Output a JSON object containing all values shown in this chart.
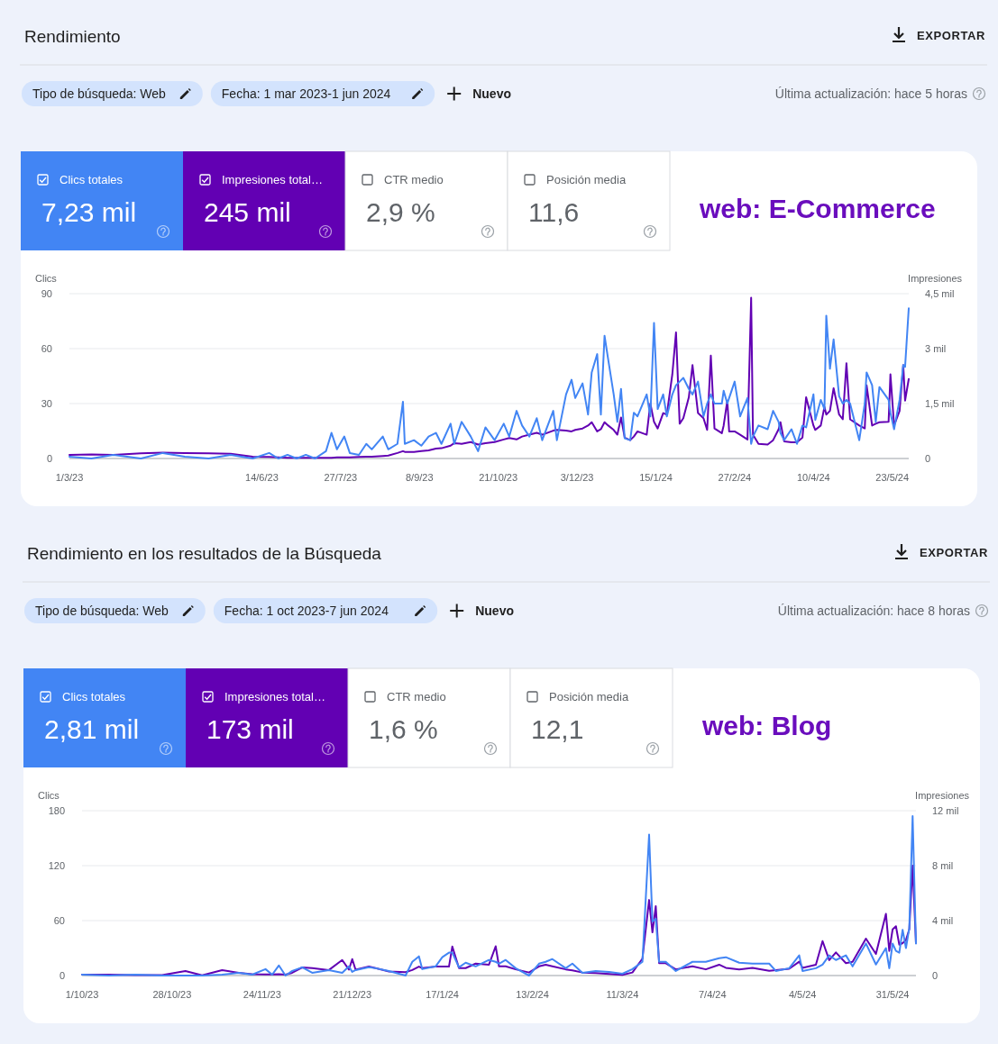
{
  "chart_data": [
    {
      "type": "line",
      "title": "Rendimiento",
      "subtitle": "web: E-Commerce",
      "ylabel": "Clics",
      "y2label": "Impresiones",
      "annotations": [
        "EXPORTAR",
        "Tipo de búsqueda: Web",
        "Fecha: 1 mar 2023-1 jun 2024",
        "Nuevo",
        "Última actualización: hace 5 horas",
        "7,23 mil",
        "245 mil",
        "CTR medio",
        "2,9 %",
        "Posición media",
        "11,6"
      ],
      "x": [
        "2023-03-01",
        "2023-03-13",
        "2023-03-25",
        "2023-04-09",
        "2023-04-21",
        "2023-05-03",
        "2023-05-16",
        "2023-05-28",
        "2023-06-09",
        "2023-06-18",
        "2023-06-23",
        "2023-06-28",
        "2023-07-03",
        "2023-07-08",
        "2023-07-13",
        "2023-07-19",
        "2023-07-22",
        "2023-07-25",
        "2023-07-29",
        "2023-08-01",
        "2023-08-06",
        "2023-08-10",
        "2023-08-13",
        "2023-08-19",
        "2023-08-22",
        "2023-08-27",
        "2023-08-30",
        "2023-08-31",
        "2023-09-05",
        "2023-09-09",
        "2023-09-13",
        "2023-09-17",
        "2023-09-20",
        "2023-09-25",
        "2023-09-27",
        "2023-10-01",
        "2023-10-06",
        "2023-10-10",
        "2023-10-14",
        "2023-10-19",
        "2023-10-24",
        "2023-10-27",
        "2023-10-31",
        "2023-11-03",
        "2023-11-07",
        "2023-11-11",
        "2023-11-14",
        "2023-11-20",
        "2023-11-22",
        "2023-11-27",
        "2023-11-30",
        "2023-12-02",
        "2023-12-06",
        "2023-12-09",
        "2023-12-11",
        "2023-12-14",
        "2023-12-16",
        "2023-12-18",
        "2023-12-20",
        "2023-12-23",
        "2023-12-25",
        "2023-12-27",
        "2023-12-29",
        "2024-01-01",
        "2024-01-03",
        "2024-01-05",
        "2024-01-10",
        "2024-01-12",
        "2024-01-14",
        "2024-01-16",
        "2024-01-19",
        "2024-01-21",
        "2024-01-24",
        "2024-01-26",
        "2024-01-28",
        "2024-01-30",
        "2024-02-02",
        "2024-02-04",
        "2024-02-07",
        "2024-02-10",
        "2024-02-12",
        "2024-02-14",
        "2024-02-16",
        "2024-02-20",
        "2024-02-21",
        "2024-02-23",
        "2024-02-24",
        "2024-02-27",
        "2024-03-01",
        "2024-03-05",
        "2024-03-07",
        "2024-03-08",
        "2024-03-11",
        "2024-03-16",
        "2024-03-19",
        "2024-03-22",
        "2024-03-23",
        "2024-03-25",
        "2024-03-29",
        "2024-04-01",
        "2024-04-04",
        "2024-04-06",
        "2024-04-10",
        "2024-04-11",
        "2024-04-14",
        "2024-04-16",
        "2024-04-17",
        "2024-04-19",
        "2024-04-21",
        "2024-04-24",
        "2024-04-26",
        "2024-04-28",
        "2024-04-30",
        "2024-05-05",
        "2024-05-08",
        "2024-05-09",
        "2024-05-12",
        "2024-05-14",
        "2024-05-16",
        "2024-05-21",
        "2024-05-22",
        "2024-05-24",
        "2024-05-27",
        "2024-05-29",
        "2024-05-30",
        "2024-06-01"
      ],
      "xlim": [
        "2023-03-01",
        "2024-06-01"
      ],
      "xticks": [
        {
          "value": "2023-03-01",
          "label": "1/3/23"
        },
        {
          "value": "2023-06-14",
          "label": "14/6/23"
        },
        {
          "value": "2023-07-27",
          "label": "27/7/23"
        },
        {
          "value": "2023-09-08",
          "label": "8/9/23"
        },
        {
          "value": "2023-10-21",
          "label": "21/10/23"
        },
        {
          "value": "2023-12-03",
          "label": "3/12/23"
        },
        {
          "value": "2024-01-15",
          "label": "15/1/24"
        },
        {
          "value": "2024-02-27",
          "label": "27/2/24"
        },
        {
          "value": "2024-04-10",
          "label": "10/4/24"
        },
        {
          "value": "2024-05-23",
          "label": "23/5/24"
        }
      ],
      "ylim": [
        0,
        90
      ],
      "yticks": [
        0,
        30,
        60,
        90
      ],
      "y2lim": [
        0,
        4.5
      ],
      "y2ticks": [
        0,
        {
          "value": 1.5,
          "label": "1,5 mil"
        },
        {
          "value": 3,
          "label": "3 mil"
        },
        {
          "value": 4.5,
          "label": "4,5 mil"
        }
      ],
      "grid": "y",
      "legend": "top left",
      "series": [
        {
          "name": "Clics totales",
          "color": "#4285f4",
          "values": [
            1,
            0,
            2,
            0,
            3,
            1,
            0,
            2,
            0,
            3,
            0,
            2,
            0,
            2,
            0,
            4,
            14,
            5,
            12,
            3,
            2,
            8,
            5,
            12,
            5,
            8,
            31,
            8,
            10,
            7,
            12,
            14,
            8,
            19,
            8,
            20,
            12,
            4,
            17,
            10,
            19,
            12,
            26,
            18,
            12,
            22,
            10,
            26,
            10,
            35,
            43,
            33,
            41,
            24,
            47,
            57,
            24,
            67,
            54,
            35,
            20,
            38,
            11,
            10,
            25,
            23,
            35,
            23,
            74,
            27,
            35,
            23,
            35,
            40,
            42,
            44,
            38,
            35,
            42,
            23,
            30,
            35,
            30,
            30,
            37,
            30,
            33,
            42,
            23,
            33,
            8,
            12,
            18,
            16,
            26,
            20,
            14,
            10,
            16,
            8,
            18,
            17,
            35,
            21,
            32,
            27,
            78,
            49,
            65,
            34,
            30,
            32,
            30,
            10,
            30,
            47,
            40,
            20,
            39,
            32,
            25,
            16,
            32,
            51,
            50,
            82
          ]
        },
        {
          "name": "Impresiones total…",
          "color": "#6200b3",
          "axis": "y2",
          "values": [
            0.1,
            0.11,
            0.1,
            0.14,
            0.16,
            0.15,
            0.14,
            0.13,
            0.05,
            0.04,
            0.03,
            0.02,
            0.02,
            0.02,
            0.02,
            0.02,
            0.02,
            0.03,
            0.03,
            0.03,
            0.04,
            0.05,
            0.05,
            0.07,
            0.08,
            0.15,
            0.2,
            0.18,
            0.18,
            0.2,
            0.22,
            0.27,
            0.28,
            0.35,
            0.42,
            0.4,
            0.45,
            0.38,
            0.42,
            0.45,
            0.52,
            0.56,
            0.52,
            0.6,
            0.65,
            0.7,
            0.65,
            0.76,
            0.78,
            0.76,
            0.74,
            0.78,
            0.82,
            0.9,
            0.99,
            0.74,
            0.8,
            0.99,
            0.9,
            0.78,
            0.65,
            1.12,
            0.57,
            0.5,
            0.6,
            0.74,
            0.65,
            1.5,
            1,
            0.82,
            1.24,
            1.2,
            2.3,
            3.44,
            0.95,
            1.1,
            1.67,
            2.55,
            1.24,
            1.1,
            0.78,
            2.81,
            0.82,
            0.69,
            0.9,
            1.58,
            0.74,
            0.74,
            0.65,
            0.52,
            4.39,
            0.65,
            0.4,
            0.38,
            0.5,
            0.8,
            0.99,
            0.47,
            0.44,
            0.44,
            0.57,
            1.67,
            0.9,
            0.78,
            0.9,
            1.41,
            1.2,
            1.3,
            1.92,
            1.2,
            1.07,
            2.6,
            1.07,
            0.9,
            0.82,
            2,
            0.9,
            0.95,
            0.99,
            1,
            2.3,
            0.9,
            1.3,
            2.55,
            1.58,
            2.17
          ]
        }
      ]
    },
    {
      "type": "line",
      "title": "Rendimiento en los resultados de la Búsqueda",
      "subtitle": "web: Blog",
      "ylabel": "Clics",
      "y2label": "Impresiones",
      "annotations": [
        "EXPORTAR",
        "Tipo de búsqueda: Web",
        "Fecha: 1 oct 2023-7 jun 2024",
        "Nuevo",
        "Última actualización: hace 8 horas",
        "2,81 mil",
        "173 mil",
        "CTR medio",
        "1,6 %",
        "Posición media",
        "12,1"
      ],
      "x": [
        "2023-10-01",
        "2023-10-09",
        "2023-10-17",
        "2023-10-25",
        "2023-11-01",
        "2023-11-06",
        "2023-11-12",
        "2023-11-17",
        "2023-11-21",
        "2023-11-25",
        "2023-11-27",
        "2023-11-29",
        "2023-12-01",
        "2023-12-03",
        "2023-12-06",
        "2023-12-09",
        "2023-12-14",
        "2023-12-18",
        "2023-12-20",
        "2023-12-21",
        "2023-12-22",
        "2023-12-26",
        "2023-12-28",
        "2024-01-01",
        "2024-01-06",
        "2024-01-08",
        "2024-01-10",
        "2024-01-11",
        "2024-01-15",
        "2024-01-17",
        "2024-01-19",
        "2024-01-20",
        "2024-01-22",
        "2024-01-24",
        "2024-01-27",
        "2024-01-31",
        "2024-02-02",
        "2024-02-03",
        "2024-02-05",
        "2024-02-08",
        "2024-02-12",
        "2024-02-15",
        "2024-02-17",
        "2024-02-19",
        "2024-02-23",
        "2024-02-25",
        "2024-02-28",
        "2024-03-03",
        "2024-03-07",
        "2024-03-11",
        "2024-03-14",
        "2024-03-17",
        "2024-03-19",
        "2024-03-20",
        "2024-03-21",
        "2024-03-22",
        "2024-03-24",
        "2024-03-27",
        "2024-04-01",
        "2024-04-05",
        "2024-04-09",
        "2024-04-11",
        "2024-04-15",
        "2024-04-19",
        "2024-04-24",
        "2024-04-26",
        "2024-04-30",
        "2024-05-03",
        "2024-05-04",
        "2024-05-08",
        "2024-05-10",
        "2024-05-12",
        "2024-05-14",
        "2024-05-17",
        "2024-05-19",
        "2024-05-23",
        "2024-05-26",
        "2024-05-29",
        "2024-05-30",
        "2024-05-31",
        "2024-06-01",
        "2024-06-02",
        "2024-06-03",
        "2024-06-04",
        "2024-06-05",
        "2024-06-06",
        "2024-06-07"
      ],
      "xlim": [
        "2023-10-01",
        "2024-06-07"
      ],
      "xticks": [
        {
          "value": "2023-10-01",
          "label": "1/10/23"
        },
        {
          "value": "2023-10-28",
          "label": "28/10/23"
        },
        {
          "value": "2023-11-24",
          "label": "24/11/23"
        },
        {
          "value": "2023-12-21",
          "label": "21/12/23"
        },
        {
          "value": "2024-01-17",
          "label": "17/1/24"
        },
        {
          "value": "2024-02-13",
          "label": "13/2/24"
        },
        {
          "value": "2024-03-11",
          "label": "11/3/24"
        },
        {
          "value": "2024-04-07",
          "label": "7/4/24"
        },
        {
          "value": "2024-05-04",
          "label": "4/5/24"
        },
        {
          "value": "2024-05-31",
          "label": "31/5/24"
        }
      ],
      "ylim": [
        0,
        180
      ],
      "yticks": [
        0,
        60,
        120,
        180
      ],
      "y2lim": [
        0,
        12
      ],
      "y2ticks": [
        0,
        {
          "value": 4,
          "label": "4 mil"
        },
        {
          "value": 8,
          "label": "8 mil"
        },
        {
          "value": 12,
          "label": "12 mil"
        }
      ],
      "grid": "y",
      "legend": "top left",
      "series": [
        {
          "name": "Clics totales",
          "color": "#4285f4",
          "values": [
            1,
            0,
            1,
            0,
            0,
            0,
            1,
            3,
            1,
            7,
            1,
            11,
            0,
            5,
            9,
            3,
            6,
            3,
            10,
            4,
            6,
            9,
            8,
            5,
            0,
            15,
            21,
            7,
            10,
            20,
            25,
            25,
            9,
            14,
            10,
            17,
            15,
            13,
            17,
            8,
            0,
            13,
            15,
            18,
            8,
            13,
            3,
            5,
            4,
            2,
            7,
            15,
            154,
            59,
            62,
            15,
            15,
            5,
            15,
            15,
            19,
            20,
            14,
            13,
            13,
            5,
            8,
            22,
            5,
            8,
            12,
            22,
            17,
            22,
            10,
            35,
            12,
            30,
            8,
            35,
            27,
            25,
            50,
            30,
            52,
            174,
            35
          ]
        },
        {
          "name": "Impresiones total…",
          "color": "#6200b3",
          "axis": "y2",
          "values": [
            0.06,
            0.07,
            0.04,
            0.03,
            0.33,
            0.02,
            0.39,
            0.2,
            0.1,
            0.08,
            0.08,
            0.1,
            0.06,
            0.2,
            0.59,
            0.54,
            0.4,
            1.13,
            0.43,
            1.2,
            0.43,
            0.65,
            0.54,
            0.3,
            0.25,
            0.4,
            0.65,
            0.54,
            0.65,
            0.65,
            0.65,
            2.11,
            0.54,
            0.54,
            0.87,
            0.79,
            2.13,
            0.67,
            0.67,
            0.45,
            0.22,
            0.67,
            0.79,
            0.67,
            0.45,
            0.38,
            0.22,
            0.18,
            0.11,
            0.05,
            0.22,
            1.23,
            5.5,
            3.14,
            5.05,
            0.9,
            0.9,
            0.45,
            0.67,
            0.45,
            0.79,
            0.56,
            0.45,
            0.56,
            0.34,
            0.4,
            0.49,
            1.01,
            0.56,
            0.79,
            2.51,
            1.12,
            1.68,
            0.9,
            1,
            2.69,
            1.57,
            4.49,
            1.79,
            3.36,
            3.59,
            2.24,
            2.36,
            2.58,
            3.36,
            8,
            2.36
          ]
        }
      ]
    }
  ]
}
